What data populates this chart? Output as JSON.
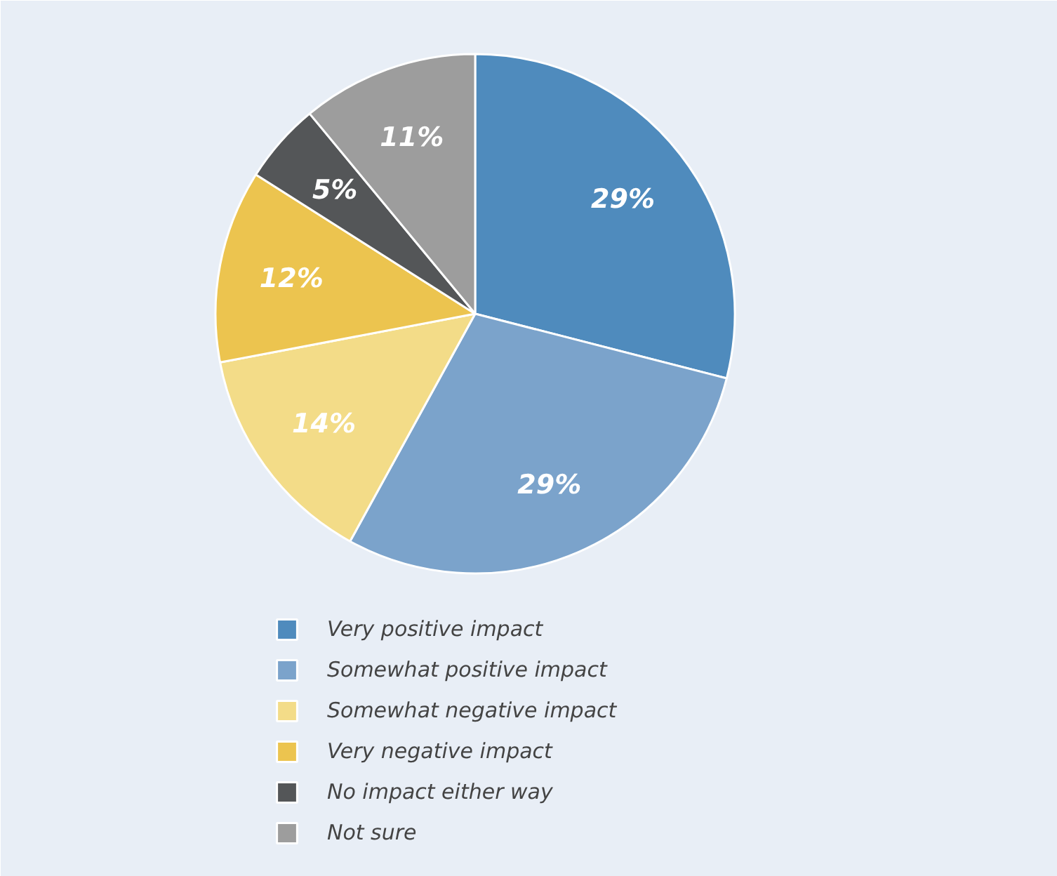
{
  "chart_data": {
    "type": "pie",
    "categories": [
      "Very positive impact",
      "Somewhat positive impact",
      "Somewhat negative impact",
      "Very negative impact",
      "No impact either way",
      "Not sure"
    ],
    "values": [
      29,
      29,
      14,
      12,
      5,
      11
    ],
    "colors": [
      "#4f8bbd",
      "#7ba3cb",
      "#f3dc88",
      "#ecc44f",
      "#545658",
      "#9d9d9d"
    ],
    "value_labels": [
      "29%",
      "29%",
      "14%",
      "12%",
      "5%",
      "11%"
    ],
    "legend": "bottom"
  }
}
